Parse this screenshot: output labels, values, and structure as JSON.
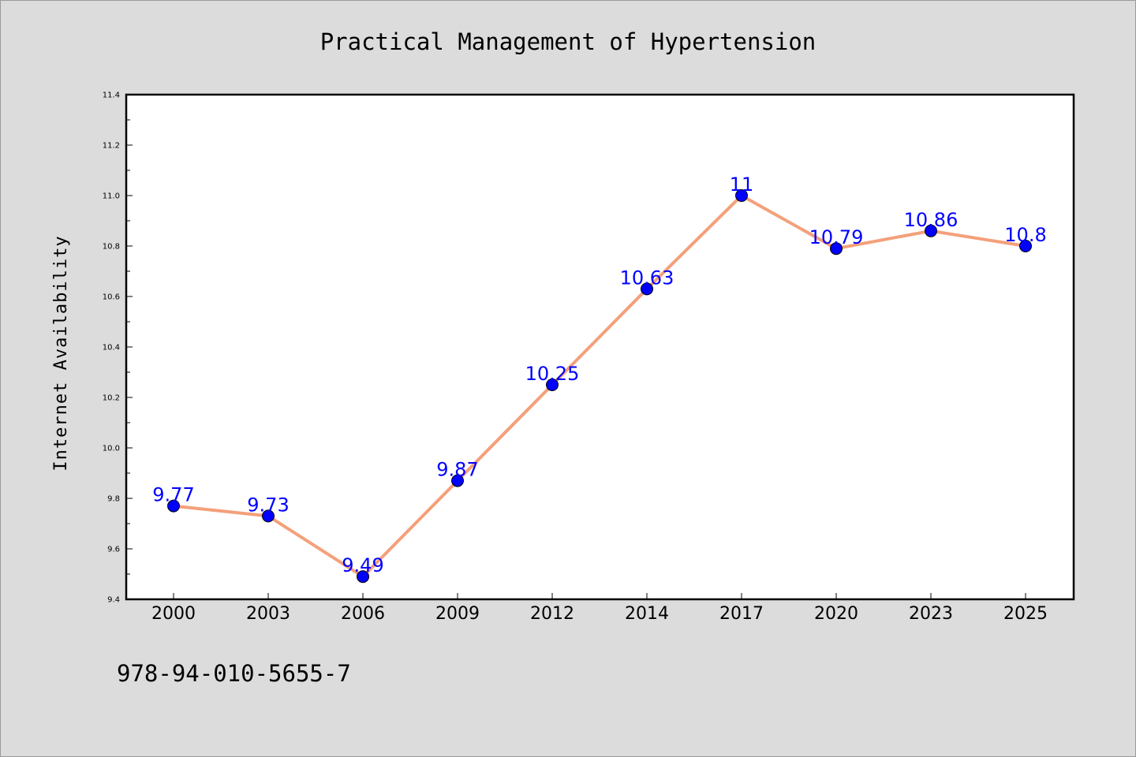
{
  "chart_data": {
    "type": "line",
    "title": "Practical Management of Hypertension",
    "ylabel": "Internet Availability",
    "xlabel": "",
    "categories": [
      "2000",
      "2003",
      "2006",
      "2009",
      "2012",
      "2014",
      "2017",
      "2020",
      "2023",
      "2025"
    ],
    "series": [
      {
        "values": [
          9.77,
          9.73,
          9.49,
          9.87,
          10.25,
          10.63,
          11,
          10.79,
          10.86,
          10.8
        ],
        "labels": [
          "9.77",
          "9.73",
          "9.49",
          "9.87",
          "10.25",
          "10.63",
          "11",
          "10.79",
          "10.86",
          "10.8"
        ],
        "line_color": "#f4a07a",
        "marker_color": "#0000ff"
      }
    ],
    "ylim": [
      9.4,
      11.4
    ],
    "yticks": [
      "9.4",
      "9.6",
      "9.8",
      "10.0",
      "10.2",
      "10.4",
      "10.6",
      "10.8",
      "11.0",
      "11.2",
      "11.4"
    ],
    "grid": false,
    "label_color": "#0000ff"
  },
  "footer": {
    "isbn": "978-94-010-5655-7"
  },
  "colors": {
    "background": "#dcdcdc",
    "plot_background": "#ffffff"
  }
}
